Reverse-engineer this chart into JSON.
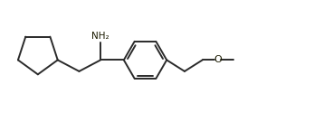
{
  "bg_color": "#ffffff",
  "line_color": "#2a2a2a",
  "lw": 1.4,
  "NH2_text": "NH₂",
  "O_text": "O",
  "figsize": [
    3.47,
    1.35
  ],
  "dpi": 100,
  "xlim": [
    0,
    10.5
  ],
  "ylim": [
    0,
    4.0
  ]
}
